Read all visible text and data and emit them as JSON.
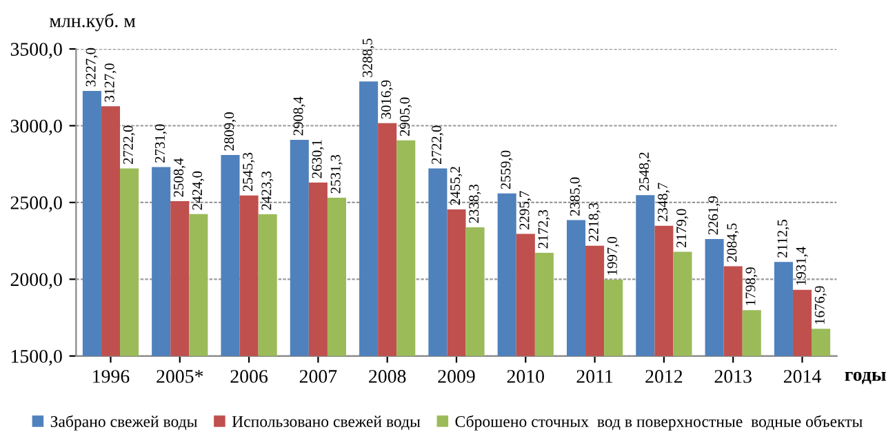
{
  "chart_data": {
    "type": "bar",
    "ylabel": "млн.куб. м",
    "xlabel": "годы",
    "categories": [
      "1996",
      "2005*",
      "2006",
      "2007",
      "2008",
      "2009",
      "2010",
      "2011",
      "2012",
      "2013",
      "2014"
    ],
    "series": [
      {
        "name": "Забрано свежей воды",
        "color": "#4f81bd",
        "values": [
          3227.0,
          2731.0,
          2809.0,
          2908.4,
          3288.5,
          2722.0,
          2559.0,
          2385.0,
          2548.2,
          2261.9,
          2112.5
        ],
        "value_labels": [
          "3227,0",
          "2731,0",
          "2809,0",
          "2908,4",
          "3288,5",
          "2722,0",
          "2559,0",
          "2385,0",
          "2548,2",
          "2261,9",
          "2112,5"
        ]
      },
      {
        "name": "Использовано свежей воды",
        "color": "#c0504d",
        "values": [
          3127.0,
          2508.4,
          2545.3,
          2630.1,
          3016.9,
          2455.2,
          2295.7,
          2218.3,
          2348.7,
          2084.5,
          1931.4
        ],
        "value_labels": [
          "3127,0",
          "2508,4",
          "2545,3",
          "2630,1",
          "3016,9",
          "2455,2",
          "2295,7",
          "2218,3",
          "2348,7",
          "2084,5",
          "1931,4"
        ]
      },
      {
        "name": "Сброшено сточных  вод в поверхностные  водные объекты",
        "color": "#9bbb59",
        "values": [
          2722.0,
          2424.0,
          2423.3,
          2531.3,
          2905.0,
          2338.3,
          2172.3,
          1997.0,
          2179.0,
          1798.9,
          1676.9
        ],
        "value_labels": [
          "2722,0",
          "2424,0",
          "2423,3",
          "2531,3",
          "2905,0",
          "2338,3",
          "2172,3",
          "1997,0",
          "2179,0",
          "1798,9",
          "1676,9"
        ]
      }
    ],
    "ylim": [
      1500,
      3500
    ],
    "yticks": [
      {
        "value": 1500,
        "label": "1500,0"
      },
      {
        "value": 2000,
        "label": "2000,0"
      },
      {
        "value": 2500,
        "label": "2500,0"
      },
      {
        "value": 3000,
        "label": "3000,0"
      },
      {
        "value": 3500,
        "label": "3500,0"
      }
    ],
    "grid": "y",
    "legend": "bottom"
  }
}
